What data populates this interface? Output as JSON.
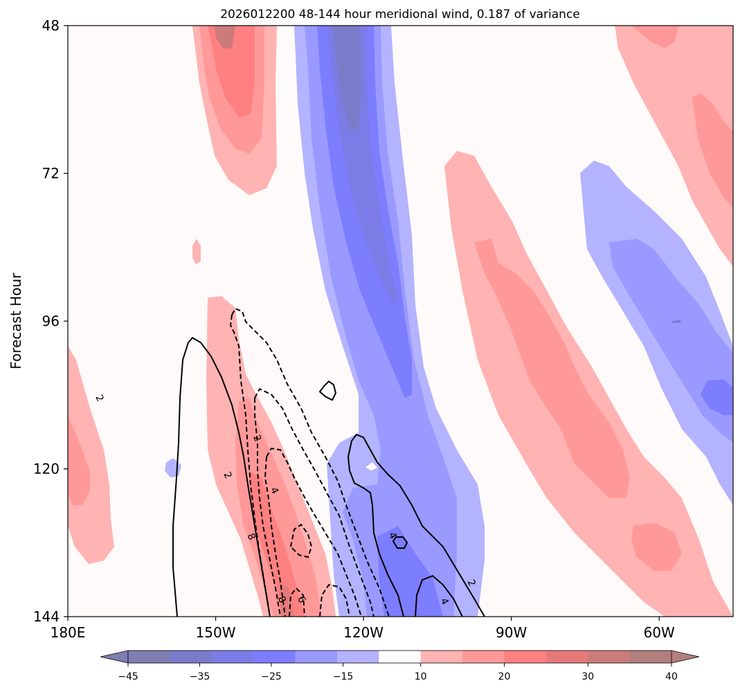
{
  "chart_data": {
    "type": "contour",
    "title": "2026012200 48-144 hour meridional wind, 0.187 of variance",
    "xlabel": "",
    "ylabel": "Forecast Hour",
    "x_ticks": [
      "180E",
      "150W",
      "120W",
      "90W",
      "60W"
    ],
    "x_tick_values": [
      180,
      210,
      240,
      270,
      300
    ],
    "xlim": [
      180,
      315
    ],
    "y_ticks": [
      "48",
      "72",
      "96",
      "120",
      "144"
    ],
    "y_tick_values": [
      48,
      72,
      96,
      120,
      144
    ],
    "ylim": [
      144,
      48
    ],
    "colorbar": {
      "levels": [
        -45,
        -40,
        -35,
        -30,
        -25,
        -20,
        -15,
        -10,
        10,
        15,
        20,
        25,
        30,
        35,
        40,
        45
      ],
      "tick_values": [
        -45,
        -35,
        -25,
        -15,
        10,
        20,
        30,
        40
      ],
      "tick_labels": [
        "−45",
        "−35",
        "−25",
        "−15",
        "10",
        "20",
        "30",
        "40"
      ],
      "colors": [
        "#7e7eb2",
        "#7b7bcc",
        "#7c7ce6",
        "#7d7dff",
        "#9999ff",
        "#b3b3ff",
        "#ffffff",
        "#ffb3b3",
        "#ff9999",
        "#ff8080",
        "#e67a7a",
        "#cc7b7b",
        "#b37e7e"
      ],
      "extend": "both"
    },
    "contour_labels": [
      {
        "text": "2",
        "lon": 186.5,
        "hour": 108.5
      },
      {
        "text": "2",
        "lon": 218.5,
        "hour": 115.0
      },
      {
        "text": "2",
        "lon": 212.5,
        "hour": 121.0
      },
      {
        "text": "4",
        "lon": 222.0,
        "hour": 123.5
      },
      {
        "text": "8",
        "lon": 217.3,
        "hour": 131.0
      },
      {
        "text": "4",
        "lon": 246.0,
        "hour": 130.8
      },
      {
        "text": "2",
        "lon": 262.0,
        "hour": 138.5
      },
      {
        "text": "4",
        "lon": 256.5,
        "hour": 141.5
      },
      {
        "text": "6",
        "lon": 227.5,
        "hour": 141.2
      },
      {
        "text": "8",
        "lon": 223.5,
        "hour": 141.2
      }
    ]
  }
}
